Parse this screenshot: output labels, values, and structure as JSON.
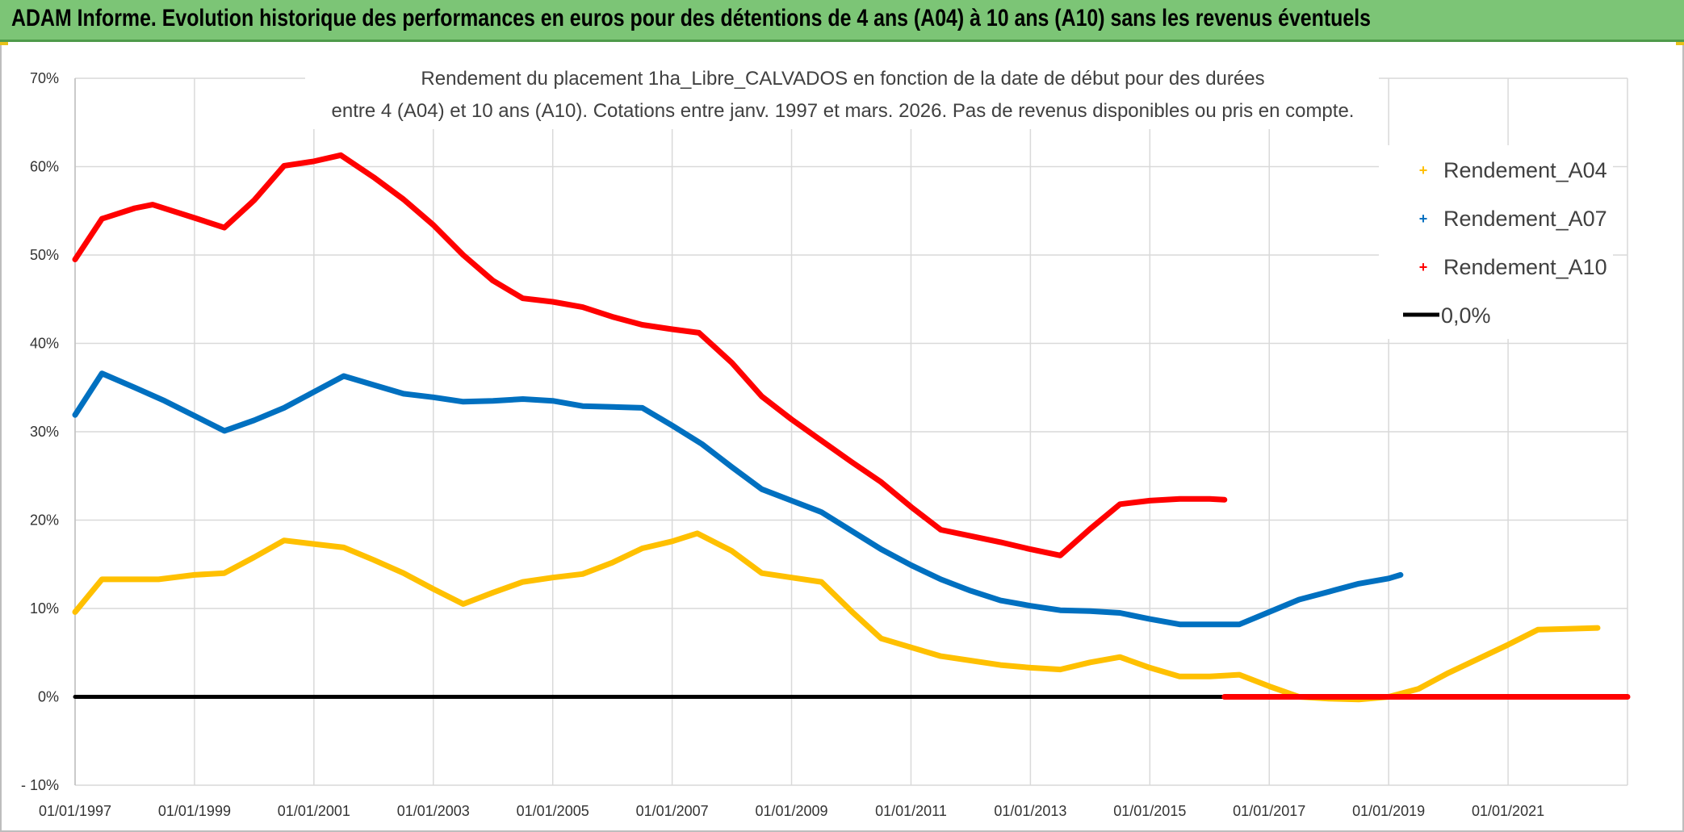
{
  "header": {
    "title": "ADAM Informe. Evolution historique des performances en euros pour des détentions de 4 ans (A04) à 10 ans (A10) sans les revenus éventuels"
  },
  "chart_data": {
    "type": "line",
    "title_line1": "Rendement du placement 1ha_Libre_CALVADOS en fonction de la date de début pour des durées",
    "title_line2": "entre 4 (A04) et 10 ans (A10). Cotations entre janv. 1997 et mars. 2026. Pas de revenus disponibles ou pris en compte.",
    "xlabel": "",
    "ylabel": "",
    "x_range": [
      1997.0,
      2023.0
    ],
    "ylim": [
      -10,
      70
    ],
    "y_ticks": [
      -10,
      0,
      10,
      20,
      30,
      40,
      50,
      60,
      70
    ],
    "y_tick_labels": [
      "- 10%",
      "0%",
      "10%",
      "20%",
      "30%",
      "40%",
      "50%",
      "60%",
      "70%"
    ],
    "x_ticks": [
      1997,
      1999,
      2001,
      2003,
      2005,
      2007,
      2009,
      2011,
      2013,
      2015,
      2017,
      2019,
      2021
    ],
    "x_tick_labels": [
      "01/01/1997",
      "01/01/1999",
      "01/01/2001",
      "01/01/2003",
      "01/01/2005",
      "01/01/2007",
      "01/01/2009",
      "01/01/2011",
      "01/01/2013",
      "01/01/2015",
      "01/01/2017",
      "01/01/2019",
      "01/01/2021"
    ],
    "grid": true,
    "legend_position": "top-right",
    "series": [
      {
        "name": "Rendement_A04",
        "color": "#ffc000",
        "x": [
          1997.0,
          1997.45,
          1998.0,
          1998.4,
          1999.0,
          1999.5,
          2000.0,
          2000.5,
          2001.0,
          2001.5,
          2002.0,
          2002.5,
          2003.0,
          2003.5,
          2004.0,
          2004.5,
          2005.0,
          2005.5,
          2006.0,
          2006.5,
          2007.0,
          2007.42,
          2008.0,
          2008.5,
          2009.0,
          2009.5,
          2010.0,
          2010.5,
          2011.0,
          2011.5,
          2012.0,
          2012.5,
          2013.0,
          2013.5,
          2014.0,
          2014.5,
          2015.0,
          2015.5,
          2016.0,
          2016.5,
          2017.0,
          2017.5,
          2018.0,
          2018.5,
          2019.0,
          2019.5,
          2020.0,
          2020.5,
          2021.0,
          2021.5,
          2022.0,
          2022.5
        ],
        "y": [
          9.6,
          13.3,
          13.3,
          13.3,
          13.8,
          14.0,
          15.8,
          17.7,
          17.3,
          16.9,
          15.5,
          14.0,
          12.2,
          10.5,
          11.8,
          13.0,
          13.5,
          13.9,
          15.2,
          16.8,
          17.6,
          18.5,
          16.5,
          14.0,
          13.5,
          13.0,
          9.7,
          6.6,
          5.6,
          4.6,
          4.1,
          3.6,
          3.3,
          3.1,
          3.9,
          4.5,
          3.3,
          2.3,
          2.3,
          2.5,
          1.2,
          0.0,
          -0.2,
          -0.3,
          0.0,
          0.9,
          2.7,
          4.3,
          5.9,
          7.6,
          7.7,
          7.8
        ]
      },
      {
        "name": "Rendement_A07",
        "color": "#0070c0",
        "x": [
          1997.0,
          1997.45,
          1998.0,
          1998.5,
          1999.0,
          1999.5,
          2000.0,
          2000.5,
          2001.0,
          2001.5,
          2002.0,
          2002.5,
          2003.0,
          2003.5,
          2004.0,
          2004.5,
          2005.0,
          2005.5,
          2006.0,
          2006.5,
          2007.0,
          2007.5,
          2008.0,
          2008.5,
          2009.0,
          2009.5,
          2010.0,
          2010.5,
          2011.0,
          2011.5,
          2012.0,
          2012.5,
          2013.0,
          2013.5,
          2014.0,
          2014.5,
          2015.0,
          2015.5,
          2016.0,
          2016.5,
          2017.0,
          2017.5,
          2018.0,
          2018.5,
          2019.0,
          2019.2
        ],
        "y": [
          31.9,
          36.6,
          35.0,
          33.5,
          31.8,
          30.1,
          31.3,
          32.7,
          34.5,
          36.3,
          35.3,
          34.3,
          33.9,
          33.4,
          33.5,
          33.7,
          33.5,
          32.9,
          32.8,
          32.7,
          30.7,
          28.6,
          26.0,
          23.5,
          22.2,
          20.9,
          18.8,
          16.7,
          14.9,
          13.3,
          12.0,
          10.9,
          10.3,
          9.8,
          9.7,
          9.5,
          8.8,
          8.2,
          8.2,
          8.2,
          9.6,
          11.0,
          11.9,
          12.8,
          13.4,
          13.8
        ]
      },
      {
        "name": "Rendement_A10",
        "color": "#ff0000",
        "x": [
          1997.0,
          1997.45,
          1998.0,
          1998.3,
          1999.0,
          1999.5,
          2000.0,
          2000.5,
          2001.0,
          2001.45,
          2002.0,
          2002.5,
          2003.0,
          2003.5,
          2004.0,
          2004.5,
          2005.0,
          2005.5,
          2006.0,
          2006.5,
          2007.0,
          2007.45,
          2008.0,
          2008.5,
          2009.0,
          2009.5,
          2010.0,
          2010.5,
          2011.0,
          2011.5,
          2012.0,
          2012.5,
          2013.0,
          2013.5,
          2014.0,
          2014.5,
          2015.0,
          2015.5,
          2016.0,
          2016.25
        ],
        "y": [
          49.5,
          54.1,
          55.3,
          55.7,
          54.2,
          53.1,
          56.2,
          60.1,
          60.6,
          61.3,
          58.8,
          56.3,
          53.4,
          50.0,
          47.1,
          45.1,
          44.7,
          44.1,
          43.0,
          42.1,
          41.6,
          41.2,
          37.8,
          34.0,
          31.4,
          29.0,
          26.6,
          24.3,
          21.5,
          18.9,
          18.2,
          17.5,
          16.7,
          16.0,
          19.0,
          21.8,
          22.2,
          22.4,
          22.4,
          22.3
        ]
      },
      {
        "name": "Rendement_A10 (0%)",
        "color": "#ff0000",
        "x": [
          2016.25,
          2023.0
        ],
        "y": [
          0,
          0
        ]
      },
      {
        "name": "0,0%",
        "color": "#000000",
        "x": [
          1997.0,
          2016.25
        ],
        "y": [
          0,
          0
        ]
      }
    ],
    "legend": [
      {
        "label": "Rendement_A04",
        "color": "#ffc000",
        "marker": "+"
      },
      {
        "label": "Rendement_A07",
        "color": "#0070c0",
        "marker": "+"
      },
      {
        "label": "Rendement_A10",
        "color": "#ff0000",
        "marker": "+"
      },
      {
        "label": "0,0%",
        "color": "#000000",
        "marker": "line"
      }
    ]
  }
}
